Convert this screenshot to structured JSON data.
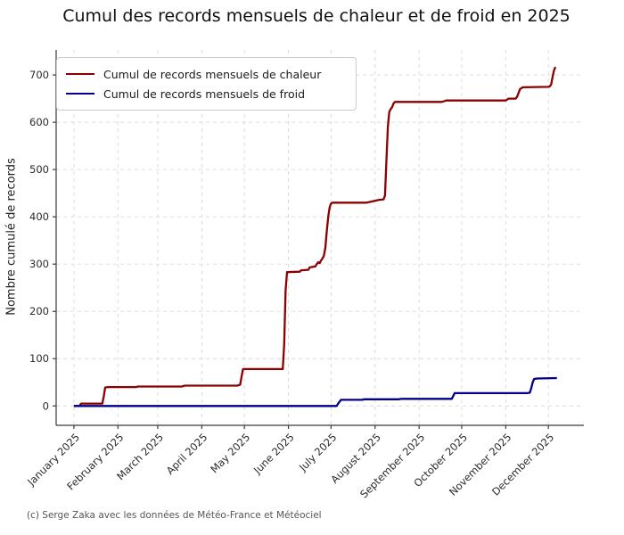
{
  "title": "Cumul des records mensuels de chaleur et de froid en 2025",
  "ylabel": "Nombre cumulé de records",
  "footer": "(c) Serge Zaka avec les données de Météo-France et Météociel",
  "legend": [
    {
      "label": "Cumul de records mensuels de chaleur",
      "color": "#8b0000"
    },
    {
      "label": "Cumul de records mensuels de froid",
      "color": "#00008b"
    }
  ],
  "colors": {
    "heat_line": "#8b0000",
    "cold_line": "#00008b",
    "grid": "#d9d9d9",
    "spine": "#3a3a3a",
    "tick_label": "#2b2b2b"
  },
  "chart_data": {
    "type": "line",
    "title": "Cumul des records mensuels de chaleur et de froid en 2025",
    "xlabel": "",
    "ylabel": "Nombre cumulé de records",
    "grid": true,
    "legend_position": "upper left",
    "x_tick_labels": [
      "January 2025",
      "February 2025",
      "March 2025",
      "April 2025",
      "May 2025",
      "June 2025",
      "July 2025",
      "August 2025",
      "September 2025",
      "October 2025",
      "November 2025",
      "December 2025"
    ],
    "month_start_days": [
      1,
      32,
      60,
      91,
      121,
      152,
      182,
      213,
      244,
      274,
      305,
      335
    ],
    "y_ticks": [
      0,
      100,
      200,
      300,
      400,
      500,
      600,
      700
    ],
    "ylim": [
      -41,
      753
    ],
    "xlim_days": [
      -11.5,
      360
    ],
    "series": [
      {
        "name": "Cumul de records mensuels de chaleur",
        "color": "#8b0000",
        "points": [
          [
            1,
            0
          ],
          [
            5,
            0
          ],
          [
            6,
            5
          ],
          [
            21,
            5
          ],
          [
            22,
            20
          ],
          [
            23,
            39
          ],
          [
            25,
            40
          ],
          [
            45,
            40
          ],
          [
            46,
            41
          ],
          [
            77,
            41
          ],
          [
            79,
            43
          ],
          [
            116,
            43
          ],
          [
            118,
            45
          ],
          [
            119,
            62
          ],
          [
            120,
            78
          ],
          [
            148,
            78
          ],
          [
            149,
            130
          ],
          [
            150,
            245
          ],
          [
            151,
            283
          ],
          [
            160,
            284
          ],
          [
            161,
            287
          ],
          [
            166,
            288
          ],
          [
            167,
            293
          ],
          [
            171,
            295
          ],
          [
            172,
            300
          ],
          [
            173,
            304
          ],
          [
            174,
            302
          ],
          [
            175,
            308
          ],
          [
            176,
            312
          ],
          [
            177,
            318
          ],
          [
            178,
            335
          ],
          [
            179,
            370
          ],
          [
            180,
            400
          ],
          [
            181,
            420
          ],
          [
            182,
            428
          ],
          [
            183,
            430
          ],
          [
            207,
            430
          ],
          [
            210,
            432
          ],
          [
            213,
            434
          ],
          [
            216,
            436
          ],
          [
            219,
            437
          ],
          [
            220,
            445
          ],
          [
            221,
            520
          ],
          [
            222,
            590
          ],
          [
            223,
            622
          ],
          [
            224,
            628
          ],
          [
            225,
            632
          ],
          [
            226,
            640
          ],
          [
            227,
            643
          ],
          [
            260,
            643
          ],
          [
            262,
            645
          ],
          [
            263,
            646
          ],
          [
            305,
            646
          ],
          [
            306,
            648
          ],
          [
            307,
            650
          ],
          [
            312,
            650
          ],
          [
            313,
            654
          ],
          [
            314,
            662
          ],
          [
            315,
            670
          ],
          [
            316,
            672
          ],
          [
            317,
            674
          ],
          [
            335,
            675
          ],
          [
            336,
            676
          ],
          [
            337,
            680
          ],
          [
            338,
            696
          ],
          [
            339,
            710
          ],
          [
            340,
            717
          ]
        ]
      },
      {
        "name": "Cumul de records mensuels de froid",
        "color": "#00008b",
        "points": [
          [
            1,
            0
          ],
          [
            186,
            0
          ],
          [
            187,
            5
          ],
          [
            189,
            13
          ],
          [
            204,
            13
          ],
          [
            205,
            14
          ],
          [
            230,
            14
          ],
          [
            231,
            15
          ],
          [
            267,
            15
          ],
          [
            268,
            21
          ],
          [
            269,
            27
          ],
          [
            320,
            27
          ],
          [
            322,
            28
          ],
          [
            323,
            38
          ],
          [
            324,
            50
          ],
          [
            325,
            57
          ],
          [
            327,
            58
          ],
          [
            341,
            59
          ]
        ]
      }
    ]
  }
}
